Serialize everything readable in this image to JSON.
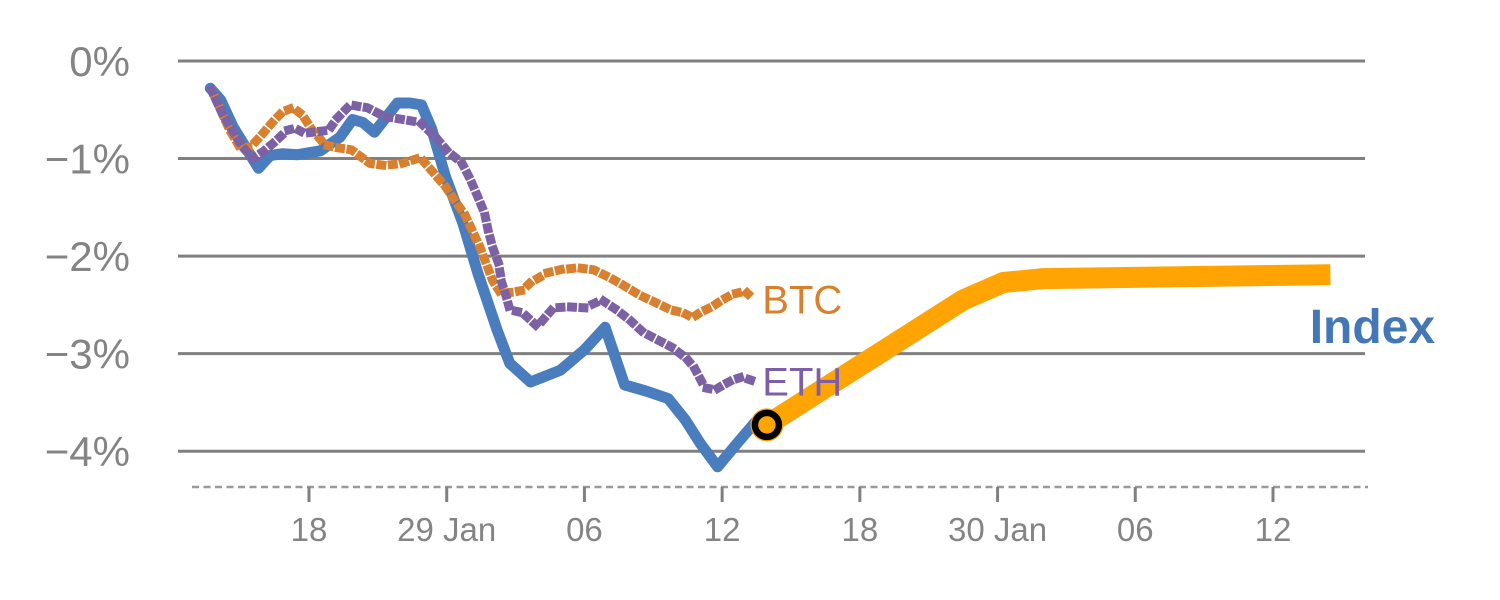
{
  "chart_data": {
    "type": "line",
    "title": "",
    "xlabel": "",
    "ylabel": "",
    "grid": true,
    "legend_position": "inline-end-of-line-labels",
    "y_axis": {
      "range": [
        -4.45,
        0.2
      ],
      "grid_color": "#808080",
      "label_color": "#848484",
      "ticks": [
        {
          "value": 0,
          "label": "0%"
        },
        {
          "value": -1,
          "label": "−1%"
        },
        {
          "value": -2,
          "label": "−2%"
        },
        {
          "value": -3,
          "label": "−3%"
        },
        {
          "value": -4,
          "label": "−4%"
        }
      ]
    },
    "x_axis": {
      "range_days": [
        0,
        104
      ],
      "axis_line_color": "#9A9A9A",
      "tick_color": "#808080",
      "label_color": "#848484",
      "ticks": [
        {
          "day": 12,
          "label": "18"
        },
        {
          "day": 24,
          "label": "29 Jan"
        },
        {
          "day": 36,
          "label": "06"
        },
        {
          "day": 48,
          "label": "12"
        },
        {
          "day": 60,
          "label": "18"
        },
        {
          "day": 72,
          "label": "30 Jan"
        },
        {
          "day": 84,
          "label": "06"
        },
        {
          "day": 96,
          "label": "12"
        }
      ]
    },
    "series": [
      {
        "id": "index-history",
        "color": "#4A7DBE",
        "style": "solid",
        "label": {
          "text": "Index",
          "color": "#4477B5",
          "day": 99.2,
          "value": -2.89
        },
        "points": [
          [
            3.4,
            -0.28
          ],
          [
            4.3,
            -0.4
          ],
          [
            5.4,
            -0.68
          ],
          [
            6.3,
            -0.85
          ],
          [
            7.6,
            -1.1
          ],
          [
            8.6,
            -0.97
          ],
          [
            9.7,
            -0.95
          ],
          [
            11.0,
            -0.96
          ],
          [
            13.0,
            -0.92
          ],
          [
            14.7,
            -0.78
          ],
          [
            15.8,
            -0.6
          ],
          [
            16.7,
            -0.63
          ],
          [
            17.7,
            -0.73
          ],
          [
            19.7,
            -0.43
          ],
          [
            20.8,
            -0.43
          ],
          [
            21.8,
            -0.45
          ],
          [
            22.7,
            -0.7
          ],
          [
            23.9,
            -1.19
          ],
          [
            25.4,
            -1.66
          ],
          [
            26.7,
            -2.17
          ],
          [
            28.4,
            -2.76
          ],
          [
            29.5,
            -3.1
          ],
          [
            31.3,
            -3.29
          ],
          [
            33.9,
            -3.17
          ],
          [
            36.0,
            -2.96
          ],
          [
            37.8,
            -2.73
          ],
          [
            39.5,
            -3.32
          ],
          [
            41.3,
            -3.38
          ],
          [
            43.3,
            -3.46
          ],
          [
            44.8,
            -3.68
          ],
          [
            46.1,
            -3.92
          ],
          [
            47.6,
            -4.16
          ],
          [
            49.3,
            -3.92
          ],
          [
            50.9,
            -3.7
          ],
          [
            51.9,
            -3.73
          ]
        ]
      },
      {
        "id": "btc",
        "color": "#D9802F",
        "style": "dotted",
        "label": {
          "text": "BTC",
          "color": "#D9802F",
          "day": 51.5,
          "value": -2.59
        },
        "points": [
          [
            3.6,
            -0.32
          ],
          [
            5.1,
            -0.71
          ],
          [
            6.0,
            -0.89
          ],
          [
            6.9,
            -0.88
          ],
          [
            7.7,
            -0.78
          ],
          [
            8.8,
            -0.63
          ],
          [
            9.7,
            -0.52
          ],
          [
            10.6,
            -0.48
          ],
          [
            11.4,
            -0.55
          ],
          [
            12.3,
            -0.71
          ],
          [
            13.4,
            -0.86
          ],
          [
            14.5,
            -0.89
          ],
          [
            15.7,
            -0.91
          ],
          [
            17.3,
            -1.05
          ],
          [
            18.6,
            -1.07
          ],
          [
            20.1,
            -1.05
          ],
          [
            21.7,
            -0.99
          ],
          [
            22.8,
            -1.14
          ],
          [
            23.9,
            -1.29
          ],
          [
            24.7,
            -1.43
          ],
          [
            25.6,
            -1.58
          ],
          [
            26.9,
            -1.91
          ],
          [
            28.0,
            -2.25
          ],
          [
            28.7,
            -2.38
          ],
          [
            29.8,
            -2.37
          ],
          [
            30.6,
            -2.35
          ],
          [
            31.3,
            -2.27
          ],
          [
            32.8,
            -2.17
          ],
          [
            33.9,
            -2.14
          ],
          [
            35.4,
            -2.12
          ],
          [
            36.8,
            -2.14
          ],
          [
            38.2,
            -2.22
          ],
          [
            39.4,
            -2.3
          ],
          [
            40.8,
            -2.4
          ],
          [
            42.1,
            -2.47
          ],
          [
            43.5,
            -2.55
          ],
          [
            44.6,
            -2.58
          ],
          [
            45.4,
            -2.63
          ],
          [
            46.2,
            -2.57
          ],
          [
            47.1,
            -2.52
          ],
          [
            48.0,
            -2.45
          ],
          [
            48.9,
            -2.39
          ],
          [
            50.0,
            -2.36
          ],
          [
            50.8,
            -2.45
          ]
        ]
      },
      {
        "id": "eth",
        "color": "#7C61A5",
        "style": "dotted",
        "label": {
          "text": "ETH",
          "color": "#7C5FA6",
          "day": 51.5,
          "value": -3.43
        },
        "points": [
          [
            3.5,
            -0.3
          ],
          [
            4.5,
            -0.55
          ],
          [
            5.3,
            -0.71
          ],
          [
            6.2,
            -0.88
          ],
          [
            7.1,
            -1.0
          ],
          [
            8.0,
            -0.93
          ],
          [
            9.0,
            -0.83
          ],
          [
            10.1,
            -0.71
          ],
          [
            10.8,
            -0.69
          ],
          [
            11.6,
            -0.74
          ],
          [
            13.7,
            -0.71
          ],
          [
            14.5,
            -0.58
          ],
          [
            15.6,
            -0.45
          ],
          [
            17.1,
            -0.48
          ],
          [
            18.6,
            -0.57
          ],
          [
            20.2,
            -0.6
          ],
          [
            21.7,
            -0.63
          ],
          [
            23.1,
            -0.79
          ],
          [
            24.1,
            -0.93
          ],
          [
            25.3,
            -1.04
          ],
          [
            26.0,
            -1.2
          ],
          [
            26.7,
            -1.39
          ],
          [
            27.3,
            -1.56
          ],
          [
            27.6,
            -1.73
          ],
          [
            28.0,
            -1.91
          ],
          [
            28.5,
            -2.07
          ],
          [
            28.8,
            -2.27
          ],
          [
            29.2,
            -2.42
          ],
          [
            29.5,
            -2.55
          ],
          [
            30.6,
            -2.58
          ],
          [
            31.9,
            -2.72
          ],
          [
            33.3,
            -2.53
          ],
          [
            34.7,
            -2.52
          ],
          [
            36.0,
            -2.53
          ],
          [
            37.5,
            -2.45
          ],
          [
            38.8,
            -2.55
          ],
          [
            40.0,
            -2.66
          ],
          [
            41.1,
            -2.78
          ],
          [
            42.4,
            -2.86
          ],
          [
            43.7,
            -2.94
          ],
          [
            44.9,
            -3.05
          ],
          [
            45.6,
            -3.15
          ],
          [
            46.5,
            -3.35
          ],
          [
            47.4,
            -3.37
          ],
          [
            48.1,
            -3.32
          ],
          [
            48.9,
            -3.27
          ],
          [
            49.7,
            -3.24
          ],
          [
            51.0,
            -3.29
          ]
        ]
      },
      {
        "id": "index-forecast",
        "color": "#FFA402",
        "style": "solid-thick",
        "points": [
          [
            51.9,
            -3.73
          ],
          [
            69.0,
            -2.45
          ],
          [
            72.5,
            -2.27
          ],
          [
            76.0,
            -2.23
          ],
          [
            101.0,
            -2.19
          ]
        ]
      }
    ],
    "marker": {
      "id": "forecast-start-marker",
      "day": 51.9,
      "value": -3.73,
      "fill": "#FFA402",
      "ring_color": "#000000"
    }
  }
}
